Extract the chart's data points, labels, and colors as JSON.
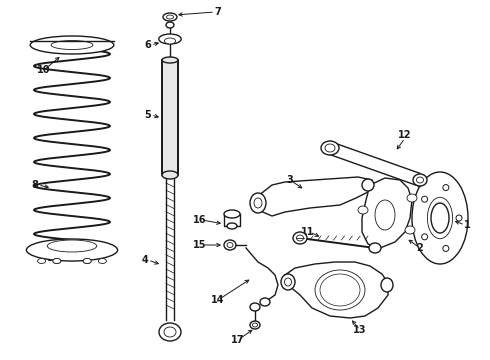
{
  "background_color": "#ffffff",
  "line_color": "#1a1a1a",
  "figsize": [
    4.9,
    3.6
  ],
  "dpi": 100,
  "label_fontsize": 7.0,
  "lw_thick": 1.4,
  "lw_med": 1.0,
  "lw_thin": 0.6
}
